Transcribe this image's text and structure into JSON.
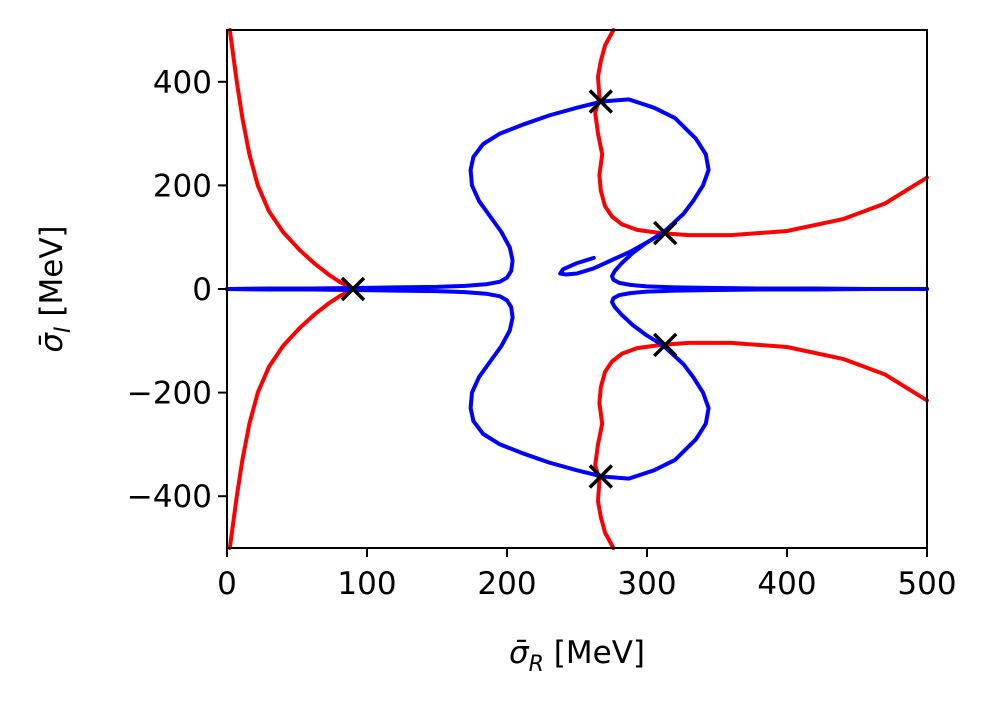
{
  "chart_data": {
    "type": "line",
    "title": "",
    "xlabel": "σ̄_R [MeV]",
    "ylabel": "σ̄_I [MeV]",
    "xlabel_parts": {
      "symbol": "σ̄",
      "subscript": "R",
      "unit": "[MeV]"
    },
    "ylabel_parts": {
      "symbol": "σ̄",
      "subscript": "I",
      "unit": "[MeV]"
    },
    "xlim": [
      0,
      500
    ],
    "ylim": [
      -500,
      500
    ],
    "xticks": [
      0,
      100,
      200,
      300,
      400,
      500
    ],
    "yticks": [
      -400,
      -200,
      0,
      200,
      400
    ],
    "xtick_labels": [
      "0",
      "100",
      "200",
      "300",
      "400",
      "500"
    ],
    "ytick_labels": [
      "−400",
      "−200",
      "0",
      "200",
      "400"
    ],
    "grid": false,
    "legend": "none",
    "colors": {
      "red": "#ff0000",
      "blue": "#0000ff",
      "marker": "#000000"
    },
    "series": [
      {
        "color": "#ff0000",
        "x": [
          2,
          4,
          7,
          11,
          16,
          22,
          30,
          40,
          52,
          63,
          73,
          81,
          87,
          90,
          91
        ],
        "y": [
          500,
          460,
          400,
          330,
          260,
          200,
          150,
          110,
          75,
          48,
          27,
          13,
          5,
          1,
          0
        ]
      },
      {
        "color": "#ff0000",
        "x": [
          91,
          90,
          87,
          81,
          73,
          63,
          52,
          40,
          30,
          22,
          16,
          11,
          7,
          4,
          2
        ],
        "y": [
          0,
          -1,
          -5,
          -13,
          -27,
          -48,
          -75,
          -110,
          -150,
          -200,
          -260,
          -330,
          -400,
          -460,
          -500
        ]
      },
      {
        "color": "#ff0000",
        "x": [
          276,
          270,
          267,
          265,
          266,
          263,
          265,
          268,
          266,
          267,
          270,
          275,
          282,
          293,
          310,
          330,
          360,
          400,
          440,
          470,
          500
        ],
        "y": [
          500,
          470,
          440,
          410,
          370,
          340,
          300,
          260,
          220,
          190,
          160,
          140,
          125,
          114,
          108,
          104,
          104,
          112,
          135,
          165,
          215
        ]
      },
      {
        "color": "#ff0000",
        "x": [
          276,
          270,
          267,
          265,
          266,
          263,
          265,
          268,
          266,
          267,
          270,
          275,
          282,
          293,
          310,
          330,
          360,
          400,
          440,
          470,
          500
        ],
        "y": [
          -500,
          -470,
          -440,
          -410,
          -370,
          -340,
          -300,
          -260,
          -220,
          -190,
          -160,
          -140,
          -125,
          -114,
          -108,
          -104,
          -104,
          -112,
          -135,
          -165,
          -215
        ]
      },
      {
        "color": "#0000ff",
        "x": [
          0,
          30,
          60,
          90,
          120,
          150,
          170,
          185,
          195,
          200,
          203,
          204,
          202,
          196,
          188,
          180,
          175,
          174,
          176,
          183,
          195,
          212,
          230,
          250,
          268,
          287,
          305,
          320,
          335,
          342,
          344,
          340,
          333,
          326,
          318,
          311
        ],
        "y": [
          0,
          -1,
          -1,
          -2,
          -3,
          -4,
          -6,
          -9,
          -14,
          -22,
          -35,
          -55,
          -80,
          -110,
          -140,
          -170,
          -200,
          -230,
          -255,
          -280,
          -300,
          -318,
          -335,
          -350,
          -362,
          -366,
          -350,
          -330,
          -290,
          -260,
          -230,
          -200,
          -170,
          -145,
          -125,
          -108
        ]
      },
      {
        "color": "#0000ff",
        "x": [
          0,
          30,
          60,
          90,
          120,
          150,
          170,
          185,
          195,
          200,
          203,
          204,
          202,
          196,
          188,
          180,
          175,
          174,
          176,
          183,
          195,
          212,
          230,
          250,
          268,
          287,
          305,
          320,
          335,
          342,
          344,
          340,
          333,
          326,
          318,
          311
        ],
        "y": [
          0,
          1,
          1,
          2,
          3,
          4,
          6,
          9,
          14,
          22,
          35,
          55,
          80,
          110,
          140,
          170,
          200,
          230,
          255,
          280,
          300,
          318,
          335,
          350,
          362,
          366,
          350,
          330,
          290,
          260,
          230,
          200,
          170,
          145,
          125,
          108
        ]
      },
      {
        "color": "#0000ff",
        "x": [
          311,
          300,
          290,
          282,
          277,
          275,
          276,
          280,
          288,
          300,
          320,
          350,
          380,
          420,
          460,
          500
        ],
        "y": [
          -108,
          -90,
          -70,
          -50,
          -35,
          -25,
          -18,
          -12,
          -8,
          -5,
          -3,
          -2,
          -1,
          -1,
          0,
          0
        ]
      },
      {
        "color": "#0000ff",
        "x": [
          311,
          300,
          290,
          282,
          277,
          275,
          276,
          280,
          288,
          300,
          320,
          350,
          380,
          420,
          460,
          500
        ],
        "y": [
          108,
          90,
          70,
          50,
          35,
          25,
          18,
          12,
          8,
          5,
          3,
          2,
          1,
          1,
          0,
          0
        ]
      },
      {
        "color": "#0000ff",
        "x": [
          311,
          300,
          288,
          275,
          262,
          250,
          242,
          238,
          240,
          250,
          262
        ],
        "y": [
          108,
          90,
          72,
          56,
          40,
          30,
          28,
          30,
          38,
          50,
          60
        ]
      }
    ],
    "markers": {
      "symbol": "x",
      "color": "#000000",
      "x": [
        90,
        267,
        267,
        313,
        313
      ],
      "y": [
        0,
        362,
        -362,
        108,
        -108
      ]
    }
  }
}
